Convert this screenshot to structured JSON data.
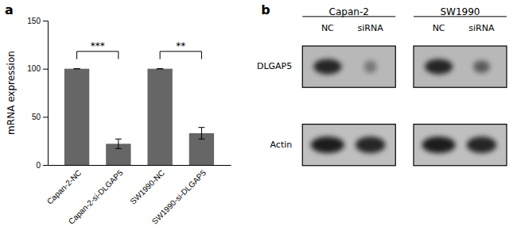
{
  "chart_data": [
    {
      "type": "bar",
      "label": "a",
      "categories": [
        "Capan-2-NC",
        "Capan-2-si-DLGAP5",
        "SW1990-NC",
        "SW1990-si-DLGAP5"
      ],
      "values": [
        100,
        22,
        100,
        33
      ],
      "errors": [
        0,
        5,
        0,
        6
      ],
      "color": "#666666",
      "ylabel": "mRNA expression",
      "ylim": [
        0,
        150
      ],
      "yticks": [
        0,
        50,
        100,
        150
      ],
      "annotations": [
        {
          "x1": 0,
          "x2": 1,
          "y": 118,
          "text": "***"
        },
        {
          "x1": 2,
          "x2": 3,
          "y": 118,
          "text": "**"
        }
      ]
    },
    {
      "type": "blot",
      "label": "b",
      "titles": [
        "Capan-2",
        "SW1990"
      ],
      "col_labels": [
        "NC",
        "siRNA"
      ],
      "row_labels": [
        "DLGAP5",
        "Actin"
      ]
    }
  ]
}
